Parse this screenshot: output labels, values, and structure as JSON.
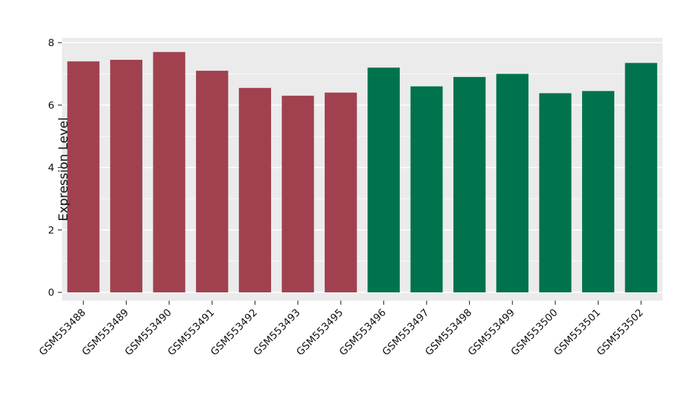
{
  "chart_data": {
    "type": "bar",
    "title": "",
    "xlabel": "",
    "ylabel": "Expression Level",
    "categories": [
      "GSM553488",
      "GSM553489",
      "GSM553490",
      "GSM553491",
      "GSM553492",
      "GSM553493",
      "GSM553495",
      "GSM553496",
      "GSM553497",
      "GSM553498",
      "GSM553499",
      "GSM553500",
      "GSM553501",
      "GSM553502"
    ],
    "values": [
      7.4,
      7.45,
      7.7,
      7.1,
      6.55,
      6.3,
      6.4,
      7.2,
      6.6,
      6.9,
      7.0,
      6.38,
      6.45,
      7.35
    ],
    "group_of": [
      0,
      0,
      0,
      0,
      0,
      0,
      0,
      1,
      1,
      1,
      1,
      1,
      1,
      1
    ],
    "group_colors": [
      "#a1414f",
      "#00724e"
    ],
    "ylim": [
      0,
      8
    ],
    "yticks": [
      0,
      2,
      4,
      6,
      8
    ],
    "grid": "on",
    "legend": "none",
    "panel_bg": "#ebebeb",
    "grid_color": "#ffffff",
    "tick_color": "#333333",
    "text_color": "#111111"
  }
}
